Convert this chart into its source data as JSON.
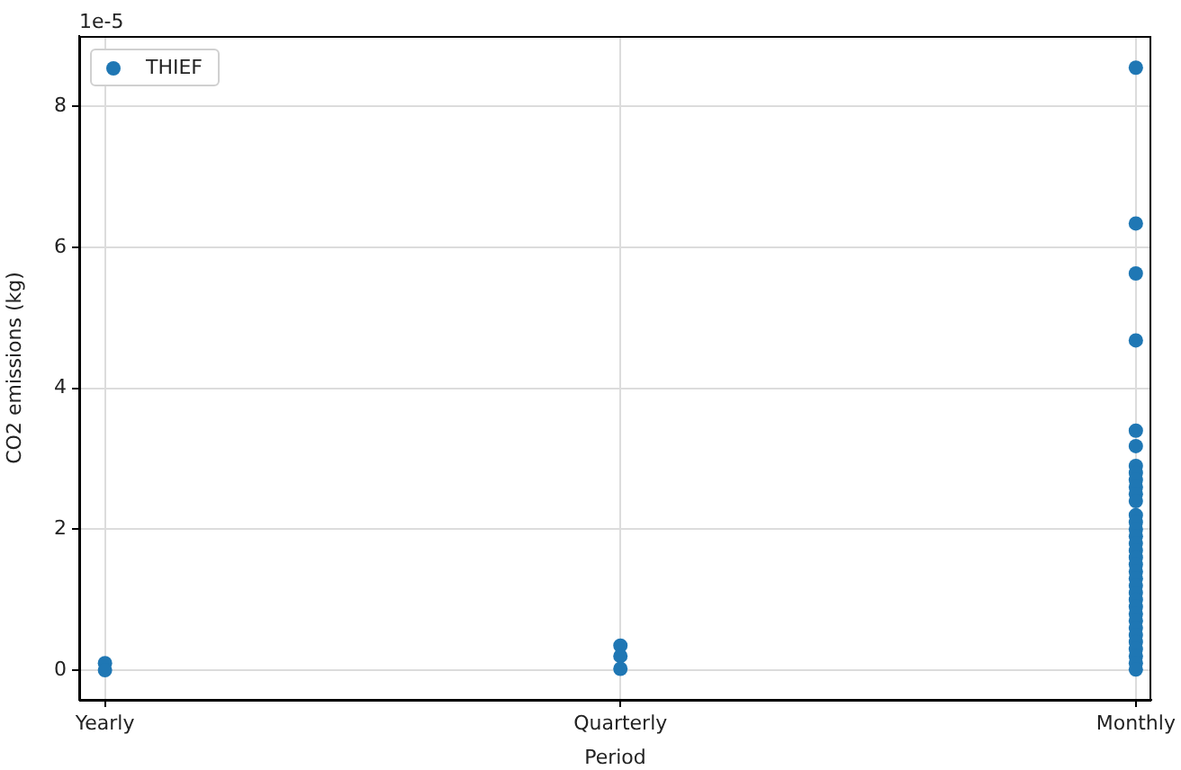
{
  "chart_data": {
    "type": "scatter",
    "xlabel": "Period",
    "ylabel": "CO2 emissions (kg)",
    "categories": [
      "Yearly",
      "Quarterly",
      "Monthly"
    ],
    "series": [
      {
        "name": "THIEF",
        "color": "#1f77b4",
        "x": [
          "Yearly",
          "Yearly",
          "Quarterly",
          "Quarterly",
          "Quarterly",
          "Monthly",
          "Monthly",
          "Monthly",
          "Monthly",
          "Monthly",
          "Monthly",
          "Monthly",
          "Monthly",
          "Monthly",
          "Monthly",
          "Monthly",
          "Monthly",
          "Monthly",
          "Monthly",
          "Monthly",
          "Monthly",
          "Monthly",
          "Monthly",
          "Monthly",
          "Monthly",
          "Monthly",
          "Monthly",
          "Monthly",
          "Monthly",
          "Monthly",
          "Monthly",
          "Monthly",
          "Monthly",
          "Monthly",
          "Monthly",
          "Monthly",
          "Monthly",
          "Monthly",
          "Monthly",
          "Monthly"
        ],
        "values": [
          0.1,
          0.0,
          0.35,
          0.2,
          0.02,
          8.55,
          6.34,
          5.63,
          4.68,
          3.4,
          3.18,
          2.9,
          2.8,
          2.7,
          2.6,
          2.5,
          2.4,
          2.2,
          2.1,
          2.0,
          1.9,
          1.8,
          1.7,
          1.6,
          1.5,
          1.4,
          1.3,
          1.2,
          1.1,
          1.0,
          0.9,
          0.8,
          0.7,
          0.6,
          0.5,
          0.4,
          0.3,
          0.2,
          0.1,
          0.01
        ]
      }
    ],
    "ylim": [
      -0.42,
      9
    ],
    "yticks": [
      0,
      2,
      4,
      6,
      8
    ],
    "annotations": [
      "1e-5"
    ],
    "grid": true,
    "legend": "top left",
    "marker": "circle"
  }
}
